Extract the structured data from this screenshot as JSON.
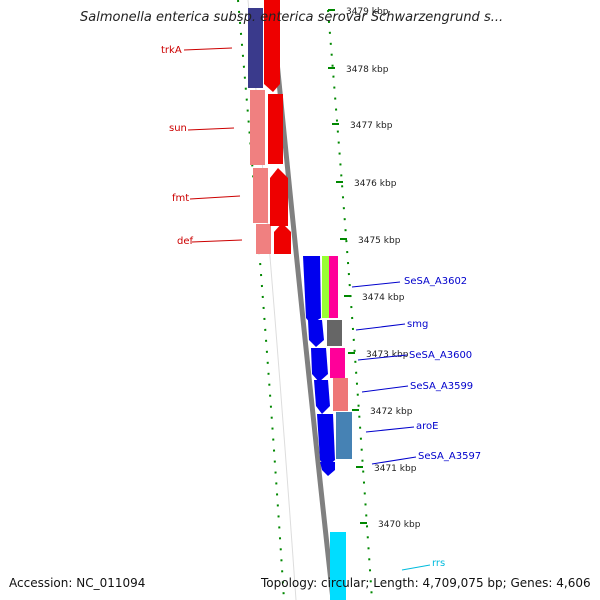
{
  "title": "Salmonella enterica subsp. enterica serovar Schwarzengrund s...",
  "footer": {
    "accession": "Accession: NC_011094",
    "summary": "Topology: circular; Length: 4,709,075 bp; Genes: 4,606"
  },
  "colors": {
    "red_gene": "#ee0000",
    "pink_gene": "#f08080",
    "navy_gene": "#3a3a8c",
    "blue_gene": "#0000ee",
    "green_gene": "#99ff33",
    "magenta_gene": "#ff0099",
    "gray_gene": "#666666",
    "salmon_gene": "#ee7777",
    "steel_gene": "#4682b4",
    "cyan_gene": "#00ddff",
    "kbp_tick": "#008800",
    "backbone": "#888888",
    "label_red": "#cc0000",
    "label_blue": "#0000cc",
    "label_cyan": "#00bbdd"
  },
  "kbp_labels": [
    "3479 kbp",
    "3478 kbp",
    "3477 kbp",
    "3476 kbp",
    "3475 kbp",
    "3474 kbp",
    "3473 kbp",
    "3472 kbp",
    "3471 kbp",
    "3470 kbp"
  ],
  "left_genes": [
    {
      "label": "trkA",
      "color": "label_red"
    },
    {
      "label": "sun",
      "color": "label_red"
    },
    {
      "label": "fmt",
      "color": "label_red"
    },
    {
      "label": "def",
      "color": "label_red"
    }
  ],
  "right_genes": [
    {
      "label": "SeSA_A3602",
      "color": "label_blue"
    },
    {
      "label": "smg",
      "color": "label_blue"
    },
    {
      "label": "SeSA_A3600",
      "color": "label_blue"
    },
    {
      "label": "SeSA_A3599",
      "color": "label_blue"
    },
    {
      "label": "aroE",
      "color": "label_blue"
    },
    {
      "label": "SeSA_A3597",
      "color": "label_blue"
    },
    {
      "label": "rrs",
      "color": "label_cyan"
    }
  ]
}
